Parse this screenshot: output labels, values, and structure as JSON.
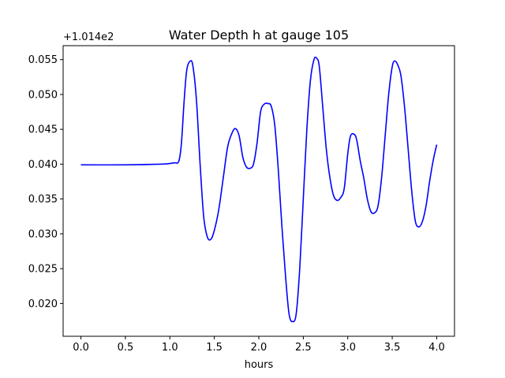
{
  "chart_data": {
    "type": "line",
    "title": "Water Depth h at gauge 105",
    "xlabel": "hours",
    "ylabel": "",
    "offset_text": "+1.014e2",
    "y_offset": 101.4,
    "xlim": [
      -0.2,
      4.2
    ],
    "ylim": [
      0.0153,
      0.057
    ],
    "xticks": [
      0.0,
      0.5,
      1.0,
      1.5,
      2.0,
      2.5,
      3.0,
      3.5,
      4.0
    ],
    "xtick_labels": [
      "0.0",
      "0.5",
      "1.0",
      "1.5",
      "2.0",
      "2.5",
      "3.0",
      "3.5",
      "4.0"
    ],
    "yticks": [
      0.02,
      0.025,
      0.03,
      0.035,
      0.04,
      0.045,
      0.05,
      0.055
    ],
    "ytick_labels": [
      "0.020",
      "0.025",
      "0.030",
      "0.035",
      "0.040",
      "0.045",
      "0.050",
      "0.055"
    ],
    "grid": false,
    "series": [
      {
        "color": "#0000ff",
        "x": [
          0.0,
          0.5,
          0.9,
          1.0,
          1.05,
          1.1,
          1.13,
          1.16,
          1.19,
          1.23,
          1.26,
          1.3,
          1.34,
          1.38,
          1.42,
          1.46,
          1.5,
          1.55,
          1.6,
          1.65,
          1.7,
          1.74,
          1.78,
          1.82,
          1.86,
          1.9,
          1.94,
          1.98,
          2.02,
          2.06,
          2.1,
          2.14,
          2.18,
          2.22,
          2.26,
          2.3,
          2.34,
          2.38,
          2.42,
          2.46,
          2.5,
          2.54,
          2.58,
          2.62,
          2.65,
          2.68,
          2.72,
          2.76,
          2.8,
          2.84,
          2.88,
          2.92,
          2.96,
          3.0,
          3.03,
          3.07,
          3.1,
          3.14,
          3.18,
          3.22,
          3.26,
          3.3,
          3.34,
          3.38,
          3.42,
          3.46,
          3.5,
          3.53,
          3.57,
          3.6,
          3.64,
          3.68,
          3.72,
          3.76,
          3.8,
          3.84,
          3.88,
          3.92,
          3.96,
          4.0
        ],
        "y": [
          0.0399,
          0.0399,
          0.04,
          0.0401,
          0.0402,
          0.0404,
          0.043,
          0.049,
          0.0535,
          0.0548,
          0.054,
          0.049,
          0.04,
          0.0325,
          0.0296,
          0.0292,
          0.0305,
          0.0335,
          0.038,
          0.0425,
          0.0445,
          0.0451,
          0.044,
          0.041,
          0.0396,
          0.0394,
          0.04,
          0.043,
          0.0475,
          0.0486,
          0.0487,
          0.0483,
          0.0455,
          0.039,
          0.031,
          0.024,
          0.0185,
          0.0174,
          0.0185,
          0.025,
          0.035,
          0.045,
          0.052,
          0.055,
          0.0552,
          0.054,
          0.048,
          0.042,
          0.038,
          0.0355,
          0.0348,
          0.0352,
          0.0365,
          0.0415,
          0.044,
          0.0443,
          0.0435,
          0.0405,
          0.038,
          0.035,
          0.0332,
          0.033,
          0.034,
          0.038,
          0.044,
          0.05,
          0.054,
          0.0548,
          0.054,
          0.0525,
          0.048,
          0.042,
          0.036,
          0.0318,
          0.031,
          0.0318,
          0.034,
          0.0375,
          0.0405,
          0.0428
        ]
      }
    ]
  }
}
